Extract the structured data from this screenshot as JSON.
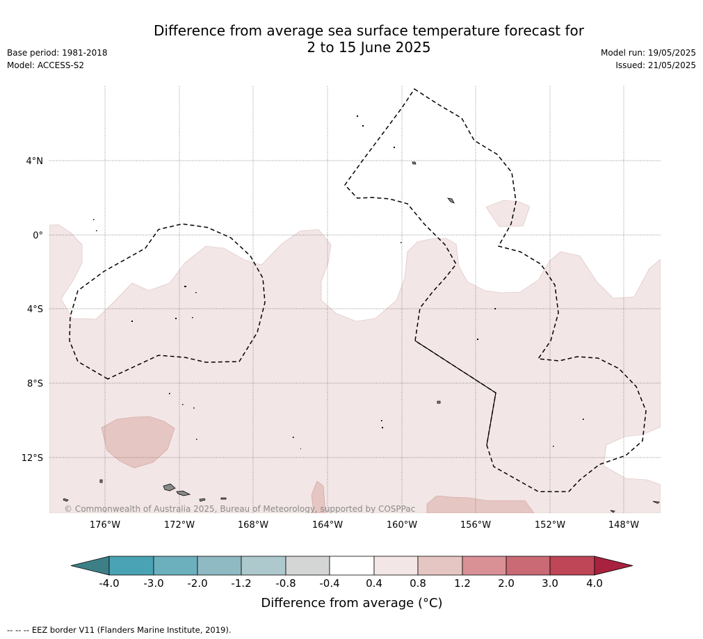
{
  "title": {
    "line1": "Difference from average sea surface temperature forecast for",
    "line2": "2 to 15 June 2025"
  },
  "meta_left": {
    "base_period": "Base period: 1981-2018",
    "model": "Model: ACCESS-S2"
  },
  "meta_right": {
    "model_run": "Model run: 19/05/2025",
    "issued": "Issued: 21/05/2025"
  },
  "map": {
    "lat_labels": [
      "4°N",
      "0°",
      "4°S",
      "8°S",
      "12°S"
    ],
    "lon_labels": [
      "176°W",
      "172°W",
      "168°W",
      "164°W",
      "160°W",
      "156°W",
      "152°W",
      "148°W"
    ],
    "copyright": "© Commonwealth of Australia 2025, Bureau of Meteorology, supported by COSPPac",
    "colors": {
      "anomaly_0_4_to_0_8": "#f3e6e6",
      "anomaly_0_8_to_1_2": "#e6c6c2",
      "land": "#8a8a8a"
    }
  },
  "colorbar": {
    "tick_labels": [
      "-4.0",
      "-3.0",
      "-2.0",
      "-1.2",
      "-0.8",
      "-0.4",
      "0.4",
      "0.8",
      "1.2",
      "2.0",
      "3.0",
      "4.0"
    ],
    "colors": [
      "#3d7f87",
      "#4aa3b4",
      "#6cb0be",
      "#8fbac4",
      "#adc9ce",
      "#d4d6d6",
      "#ffffff",
      "#f3e6e6",
      "#e6c6c2",
      "#d99196",
      "#c96a74",
      "#be4657",
      "#a8223f"
    ],
    "label": "Difference from average (°C)"
  },
  "footer": "--  --  -- EEZ border V11 (Flanders Marine Institute, 2019)."
}
